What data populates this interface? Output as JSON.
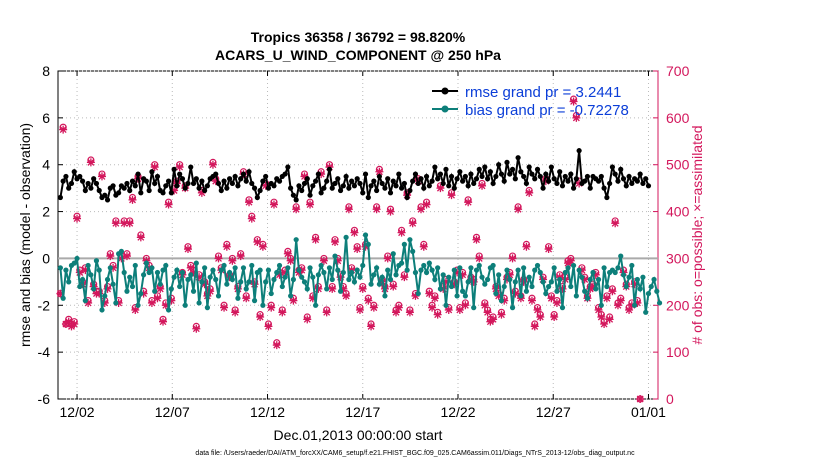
{
  "chart_data": {
    "type": "line",
    "title_line1": "Tropics 36358 / 36792 = 98.820%",
    "title_line2": "ACARS_U_WIND_COMPONENT @ 250 hPa",
    "xlabel": "Dec.01,2013 00:00:00 start",
    "ylabel_left": "rmse and bias (model - observation)",
    "ylabel_right": "# of obs: o=possible; ×=assimilated",
    "ylim_left": [
      -6,
      8
    ],
    "ylim_right": [
      0,
      700
    ],
    "xlim_days": [
      0,
      31.5
    ],
    "left_ticks": [
      "-6",
      "-4",
      "-2",
      "0",
      "2",
      "4",
      "6",
      "8"
    ],
    "right_ticks": [
      "0",
      "100",
      "200",
      "300",
      "400",
      "500",
      "600",
      "700"
    ],
    "x_ticks": [
      {
        "day": 1,
        "label": "12/02"
      },
      {
        "day": 6,
        "label": "12/07"
      },
      {
        "day": 11,
        "label": "12/12"
      },
      {
        "day": 16,
        "label": "12/17"
      },
      {
        "day": 21,
        "label": "12/22"
      },
      {
        "day": 26,
        "label": "12/27"
      },
      {
        "day": 31,
        "label": "01/01"
      }
    ],
    "legend": [
      {
        "name": "rmse grand pr = 3.2441"
      },
      {
        "name": "bias grand pr = -0.72278"
      }
    ],
    "colors": {
      "rmse": "#000000",
      "bias": "#0d7f7a",
      "obs": "#d3175c",
      "legend_text": "#0b3ed8",
      "zero_line": "#aaaaaa"
    },
    "series": [
      {
        "name": "rmse",
        "values": [
          2.6,
          3.3,
          3.5,
          3.0,
          3.2,
          3.7,
          3.4,
          3.5,
          3.3,
          2.9,
          3.2,
          3.0,
          3.4,
          3.2,
          2.9,
          2.6,
          2.7,
          2.5,
          3.0,
          3.1,
          2.7,
          2.8,
          3.1,
          3.0,
          3.2,
          2.9,
          3.3,
          3.1,
          3.6,
          2.8,
          3.4,
          3.3,
          2.9,
          3.7,
          3.2,
          3.5,
          2.9,
          2.8,
          3.1,
          3.3,
          2.8,
          3.8,
          3.1,
          3.6,
          3.4,
          3.0,
          3.2,
          3.9,
          3.2,
          3.4,
          3.0,
          3.3,
          2.9,
          3.1,
          3.4,
          3.5,
          3.6,
          3.2,
          2.9,
          3.3,
          3.0,
          3.4,
          3.2,
          3.5,
          3.1,
          3.4,
          3.6,
          3.3,
          3.7,
          3.2,
          3.0,
          2.6,
          2.9,
          3.3,
          3.5,
          3.0,
          3.2,
          3.1,
          3.4,
          3.3,
          3.5,
          3.6,
          3.9,
          3.0,
          2.7,
          2.5,
          3.1,
          2.9,
          3.2,
          3.4,
          2.7,
          3.1,
          3.3,
          3.6,
          2.8,
          3.0,
          3.3,
          3.8,
          3.0,
          3.2,
          3.4,
          2.9,
          3.1,
          3.5,
          3.0,
          3.3,
          3.1,
          3.4,
          3.2,
          2.8,
          3.6,
          2.6,
          3.1,
          3.3,
          2.9,
          3.5,
          3.2,
          3.0,
          3.4,
          2.8,
          3.3,
          3.1,
          3.6,
          3.0,
          3.2,
          2.6,
          2.9,
          3.3,
          3.6,
          3.2,
          3.4,
          3.0,
          3.5,
          3.1,
          3.3,
          3.9,
          3.4,
          3.6,
          3.2,
          3.8,
          3.1,
          3.5,
          3.0,
          3.4,
          3.7,
          3.3,
          3.5,
          3.1,
          3.6,
          3.2,
          3.4,
          3.8,
          3.5,
          3.9,
          3.4,
          3.7,
          3.2,
          3.5,
          4.0,
          3.6,
          3.3,
          4.1,
          3.6,
          3.8,
          3.4,
          4.3,
          3.7,
          3.5,
          3.2,
          3.9,
          3.6,
          3.4,
          3.8,
          3.5,
          3.0,
          3.6,
          3.3,
          3.9,
          3.4,
          3.2,
          3.7,
          3.1,
          3.5,
          3.3,
          3.6,
          3.0,
          3.4,
          4.6,
          3.2,
          3.3,
          3.5,
          3.0,
          3.5,
          3.4,
          3.3,
          3.5,
          3.0,
          2.6,
          3.2,
          3.9,
          3.6,
          3.3,
          3.8,
          3.4,
          3.1,
          3.5,
          3.2,
          3.4,
          3.3,
          3.6,
          3.2,
          3.4,
          3.1
        ]
      },
      {
        "name": "bias",
        "values": [
          -0.4,
          -1.7,
          -0.5,
          -1.0,
          -0.3,
          -0.2,
          0.0,
          -1.2,
          -0.9,
          -1.8,
          -0.3,
          -0.7,
          -1.3,
          -0.1,
          -0.5,
          -2.2,
          -1.6,
          -0.9,
          -0.4,
          -1.1,
          -1.9,
          0.2,
          0.3,
          -0.6,
          -1.4,
          -0.8,
          -1.2,
          -0.3,
          -2.0,
          -1.5,
          -0.7,
          -0.2,
          -0.6,
          -0.4,
          -1.4,
          -0.6,
          -1.1,
          -0.5,
          -0.3,
          -2.2,
          -1.3,
          -0.8,
          -0.5,
          -1.2,
          -0.6,
          -2.0,
          -0.9,
          -0.7,
          -1.4,
          -0.2,
          -1.9,
          -1.0,
          -0.4,
          -2.1,
          -0.8,
          -0.5,
          -0.9,
          -1.6,
          -0.5,
          -0.3,
          -1.1,
          -0.6,
          -0.9,
          -0.4,
          -1.7,
          -1.0,
          -0.4,
          -1.3,
          -1.0,
          -0.3,
          -1.8,
          -0.6,
          -0.5,
          -2.0,
          -1.0,
          -0.5,
          -1.5,
          -0.9,
          -0.6,
          -0.3,
          -1.2,
          -0.8,
          -0.4,
          -1.6,
          -0.9,
          0.8,
          -0.5,
          -0.8,
          -1.0,
          -1.3,
          -0.4,
          -0.8,
          -2.0,
          -0.7,
          -0.3,
          -0.6,
          -1.3,
          -0.4,
          -0.9,
          0.1,
          -0.5,
          -1.4,
          -0.6,
          0.9,
          -0.9,
          -0.6,
          -1.0,
          -0.5,
          -0.8,
          -0.3,
          1.0,
          0.6,
          -1.1,
          -0.7,
          -0.4,
          -1.1,
          -0.8,
          -1.6,
          -0.5,
          -0.9,
          0.2,
          -0.7,
          -0.3,
          -0.2,
          0.6,
          -0.5,
          0.8,
          0.3,
          -0.6,
          -1.5,
          -0.5,
          -0.3,
          -0.6,
          -0.2,
          -0.5,
          -0.9,
          -0.4,
          -1.3,
          -0.7,
          -2.0,
          -0.8,
          -1.2,
          -0.5,
          -1.6,
          -0.4,
          -1.4,
          -1.6,
          -1.0,
          -0.4,
          -2.1,
          -0.5,
          -0.3,
          -0.8,
          -1.1,
          -0.9,
          -0.4,
          -0.3,
          -1.5,
          -0.7,
          -1.8,
          -1.2,
          -0.5,
          -0.9,
          -2.1,
          -1.0,
          -0.5,
          -1.6,
          -0.4,
          -1.4,
          -0.8,
          -1.2,
          -0.5,
          -0.3,
          -0.6,
          -1.0,
          -1.5,
          -1.2,
          -1.0,
          -0.4,
          -1.4,
          -0.9,
          -2.1,
          -0.6,
          -0.4,
          -1.2,
          -0.3,
          -1.6,
          -0.5,
          -0.8,
          -1.4,
          -1.7,
          -0.9,
          -0.6,
          -1.3,
          -0.9,
          -2.0,
          -0.4,
          -1.2,
          -0.6,
          -0.5,
          -0.6,
          -0.4,
          0.1,
          -0.7,
          -1.2,
          -0.8,
          -0.3,
          -2.0,
          -0.9,
          -1.3,
          -0.8,
          -2.3,
          -1.5,
          -1.2,
          -0.9,
          -1.4,
          -1.9
        ]
      },
      {
        "name": "obs_possible",
        "values": [
          225,
          580,
          160,
          170,
          160,
          165,
          390,
          275,
          250,
          280,
          210,
          510,
          245,
          230,
          230,
          480,
          210,
          240,
          310,
          285,
          380,
          210,
          305,
          380,
          310,
          380,
          430,
          195,
          475,
          350,
          230,
          300,
          285,
          210,
          500,
          220,
          240,
          170,
          205,
          420,
          215,
          450,
          465,
          500,
          270,
          455,
          325,
          285,
          275,
          155,
          265,
          445,
          250,
          225,
          235,
          505,
          470,
          305,
          280,
          200,
          330,
          265,
          300,
          190,
          240,
          310,
          485,
          220,
          425,
          390,
          250,
          340,
          180,
          330,
          460,
          160,
          200,
          420,
          120,
          270,
          190,
          275,
          315,
          300,
          215,
          410,
          275,
          280,
          480,
          175,
          420,
          220,
          345,
          240,
          485,
          300,
          190,
          500,
          240,
          340,
          300,
          265,
          240,
          225,
          410,
          280,
          360,
          325,
          195,
          240,
          330,
          215,
          160,
          200,
          410,
          490,
          255,
          240,
          305,
          405,
          245,
          190,
          200,
          360,
          265,
          440,
          190,
          380,
          225,
          470,
          410,
          330,
          420,
          230,
          200,
          220,
          185,
          455,
          240,
          255,
          195,
          440,
          250,
          275,
          195,
          270,
          205,
          425,
          260,
          255,
          345,
          305,
          460,
          205,
          190,
          170,
          175,
          240,
          225,
          185,
          215,
          260,
          270,
          305,
          230,
          410,
          220,
          255,
          330,
          445,
          215,
          160,
          195,
          180,
          260,
          470,
          325,
          220,
          180,
          210,
          265,
          240,
          260,
          295,
          300,
          640,
          605,
          465,
          280,
          260,
          220,
          240,
          245,
          270,
          195,
          180,
          165,
          220,
          175,
          235,
          380,
          205,
          215,
          275,
          245,
          195,
          205,
          250,
          210,
          0
        ]
      },
      {
        "name": "obs_assimilated",
        "values": [
          225,
          575,
          160,
          165,
          155,
          160,
          385,
          270,
          245,
          275,
          205,
          505,
          240,
          225,
          225,
          475,
          205,
          235,
          305,
          280,
          375,
          205,
          300,
          375,
          305,
          375,
          425,
          190,
          470,
          345,
          225,
          295,
          280,
          205,
          495,
          215,
          235,
          165,
          200,
          415,
          210,
          445,
          460,
          495,
          265,
          450,
          320,
          280,
          270,
          150,
          260,
          440,
          245,
          220,
          230,
          500,
          465,
          300,
          275,
          195,
          325,
          260,
          295,
          185,
          235,
          305,
          480,
          215,
          420,
          385,
          245,
          335,
          175,
          325,
          455,
          155,
          195,
          415,
          115,
          265,
          185,
          270,
          310,
          295,
          210,
          405,
          270,
          275,
          475,
          170,
          415,
          215,
          340,
          235,
          480,
          295,
          185,
          495,
          235,
          335,
          295,
          260,
          235,
          220,
          405,
          275,
          355,
          320,
          190,
          235,
          325,
          210,
          155,
          195,
          405,
          485,
          250,
          235,
          300,
          400,
          240,
          185,
          195,
          355,
          260,
          435,
          185,
          375,
          220,
          465,
          405,
          325,
          415,
          225,
          195,
          215,
          180,
          450,
          235,
          250,
          190,
          435,
          245,
          270,
          190,
          265,
          200,
          420,
          255,
          250,
          340,
          300,
          455,
          200,
          185,
          165,
          170,
          235,
          220,
          180,
          210,
          255,
          265,
          300,
          225,
          405,
          215,
          250,
          325,
          440,
          210,
          155,
          190,
          175,
          255,
          465,
          320,
          215,
          175,
          205,
          260,
          235,
          255,
          290,
          295,
          635,
          600,
          460,
          275,
          255,
          215,
          235,
          240,
          265,
          190,
          175,
          160,
          215,
          170,
          230,
          375,
          200,
          210,
          270,
          240,
          190,
          200,
          245,
          205,
          0
        ]
      }
    ]
  },
  "footer": "data file: /Users/raeder/DAI/ATM_forcXX/CAM6_setup/f.e21.FHIST_BGC.f09_025.CAM6assim.011/Diags_NTrS_2013-12/obs_diag_output.nc"
}
